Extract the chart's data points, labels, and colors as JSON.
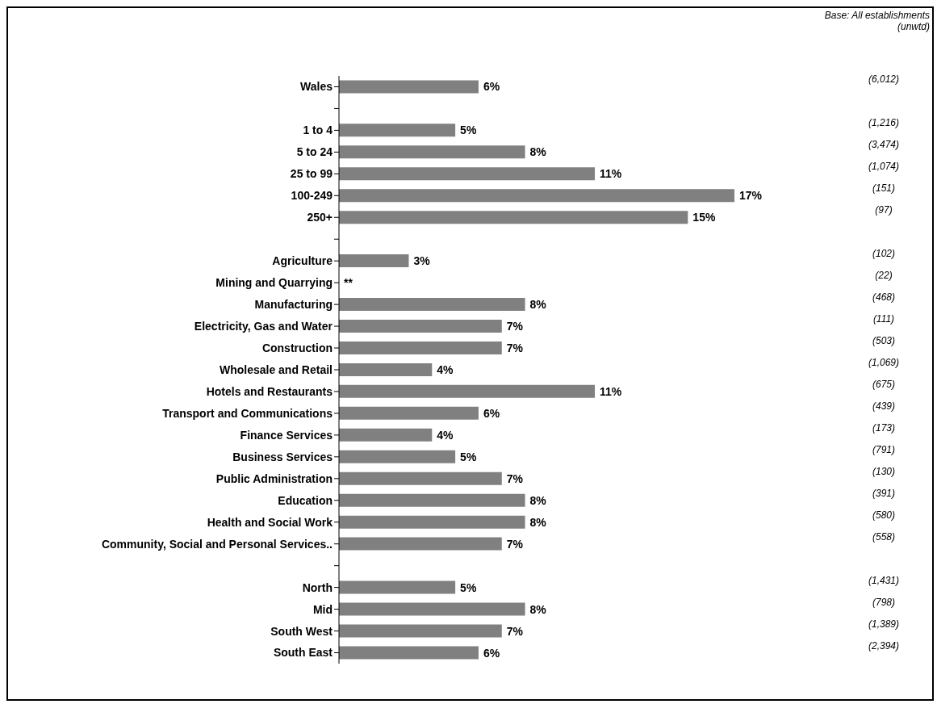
{
  "chart_data": {
    "type": "bar",
    "orientation": "horizontal",
    "color": "#808080",
    "categories": [
      "Wales",
      null,
      "1 to 4",
      "5 to 24",
      "25 to 99",
      "100-249",
      "250+",
      null,
      "Agriculture",
      "Mining and Quarrying",
      "Manufacturing",
      "Electricity, Gas and Water",
      "Construction",
      "Wholesale and Retail",
      "Hotels and Restaurants",
      "Transport and Communications",
      "Finance Services",
      "Business Services",
      "Public Administration",
      "Education",
      "Health and Social Work",
      "Community, Social and Personal Services..",
      null,
      "North",
      "Mid",
      "South West",
      "South East"
    ],
    "values": [
      6,
      null,
      5,
      8,
      11,
      17,
      15,
      null,
      3,
      null,
      8,
      7,
      7,
      4,
      11,
      6,
      4,
      5,
      7,
      8,
      8,
      7,
      null,
      5,
      8,
      7,
      6
    ],
    "value_labels": [
      "6%",
      null,
      "5%",
      "8%",
      "11%",
      "17%",
      "15%",
      null,
      "3%",
      "**",
      "8%",
      "7%",
      "7%",
      "4%",
      "11%",
      "6%",
      "4%",
      "5%",
      "7%",
      "8%",
      "8%",
      "7%",
      null,
      "5%",
      "8%",
      "7%",
      "6%"
    ],
    "annotations": [
      "Base: All establishments (unwtd)",
      "(6,012)",
      "(1,216)",
      "(3,474)",
      "(1,074)",
      "(151)",
      "(97)",
      "(102)",
      "(22)",
      "(468)",
      "(111)",
      "(503)",
      "(1,069)",
      "(675)",
      "(439)",
      "(173)",
      "(791)",
      "(130)",
      "(391)",
      "(580)",
      "(558)",
      "(1,431)",
      "(798)",
      "(1,389)",
      "(2,394)"
    ],
    "grid": false,
    "legend": false
  }
}
